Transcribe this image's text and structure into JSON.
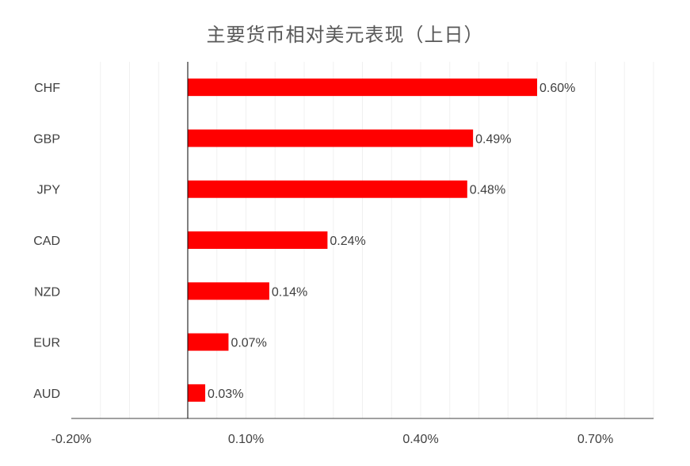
{
  "chart_data": {
    "type": "bar",
    "orientation": "horizontal",
    "title": "主要货币相对美元表现（上日）",
    "categories": [
      "CHF",
      "GBP",
      "JPY",
      "CAD",
      "NZD",
      "EUR",
      "AUD"
    ],
    "values": [
      0.6,
      0.49,
      0.48,
      0.24,
      0.14,
      0.07,
      0.03
    ],
    "value_labels": [
      "0.60%",
      "0.49%",
      "0.48%",
      "0.24%",
      "0.14%",
      "0.07%",
      "0.03%"
    ],
    "x_ticks": [
      "-0.20%",
      "0.10%",
      "0.40%",
      "0.70%"
    ],
    "x_tick_values": [
      -0.2,
      0.1,
      0.4,
      0.7
    ],
    "xlim": [
      -0.2,
      0.8
    ],
    "grid": true,
    "legend": "none",
    "bar_color": "#ff0000"
  }
}
